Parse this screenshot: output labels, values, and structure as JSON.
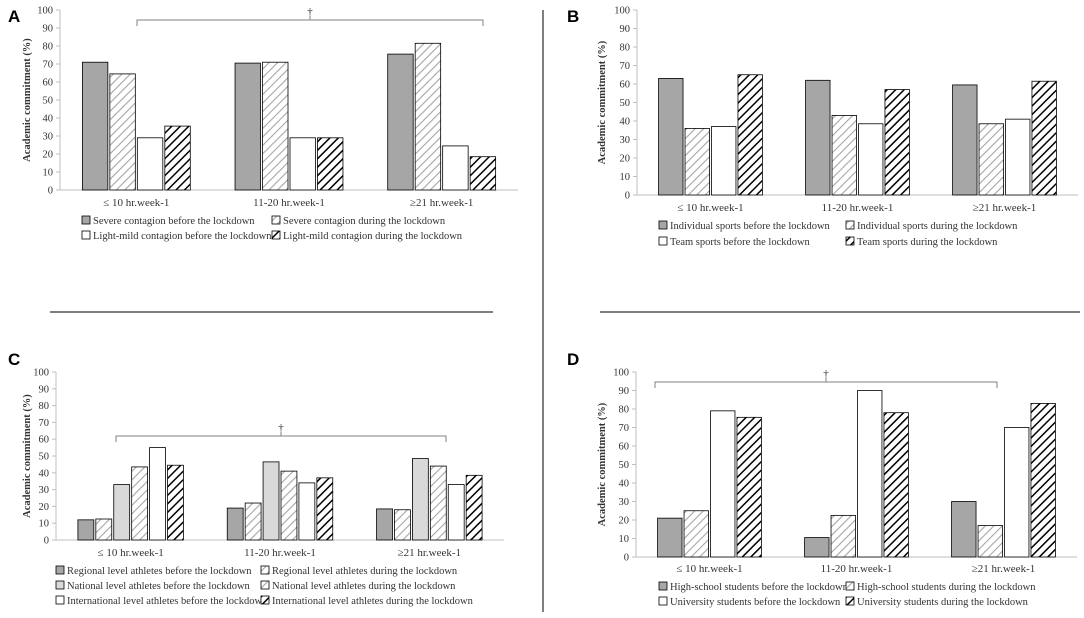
{
  "chart_data": [
    {
      "panel": "A",
      "type": "bar",
      "ylabel": "Academic commitment (%)",
      "ylim": [
        0,
        100
      ],
      "yticks": [
        0,
        10,
        20,
        30,
        40,
        50,
        60,
        70,
        80,
        90,
        100
      ],
      "categories": [
        "≤ 10 hr.week-1",
        "11-20 hr.week-1",
        "≥21 hr.week-1"
      ],
      "significance": "†",
      "series": [
        {
          "name": "Severe contagion before the lockdown",
          "fill": "solid-gray",
          "values": [
            71,
            70.5,
            75.5
          ]
        },
        {
          "name": "Severe contagion during the lockdown",
          "fill": "hatch-light",
          "values": [
            64.5,
            71,
            81.5
          ]
        },
        {
          "name": "Light-mild contagion before the lockdown",
          "fill": "white",
          "values": [
            29,
            29,
            24.5
          ]
        },
        {
          "name": "Light-mild contagion during the lockdown",
          "fill": "hatch-dark",
          "values": [
            35.5,
            29,
            18.5
          ]
        }
      ]
    },
    {
      "panel": "B",
      "type": "bar",
      "ylabel": "Academic commitment (%)",
      "ylim": [
        0,
        100
      ],
      "yticks": [
        0,
        10,
        20,
        30,
        40,
        50,
        60,
        70,
        80,
        90,
        100
      ],
      "categories": [
        "≤ 10 hr.week-1",
        "11-20 hr.week-1",
        "≥21 hr.week-1"
      ],
      "series": [
        {
          "name": "Individual sports before the lockdown",
          "fill": "solid-gray",
          "values": [
            63,
            62,
            59.5
          ]
        },
        {
          "name": "Individual sports during the lockdown",
          "fill": "hatch-light",
          "values": [
            36,
            43,
            38.5
          ]
        },
        {
          "name": "Team sports before the lockdown",
          "fill": "white",
          "values": [
            37,
            38.5,
            41
          ]
        },
        {
          "name": "Team sports during the lockdown",
          "fill": "hatch-dark",
          "values": [
            65,
            57,
            61.5
          ]
        }
      ]
    },
    {
      "panel": "C",
      "type": "bar",
      "ylabel": "Academic commitment (%)",
      "ylim": [
        0,
        100
      ],
      "yticks": [
        0,
        10,
        20,
        30,
        40,
        50,
        60,
        70,
        80,
        90,
        100
      ],
      "categories": [
        "≤ 10 hr.week-1",
        "11-20 hr.week-1",
        "≥21 hr.week-1"
      ],
      "significance": "†",
      "series": [
        {
          "name": "Regional level athletes before the lockdown",
          "fill": "solid-gray",
          "values": [
            12,
            19,
            18.5
          ]
        },
        {
          "name": "Regional level athletes during the lockdown",
          "fill": "hatch-light",
          "values": [
            12.5,
            22,
            18
          ]
        },
        {
          "name": "National level athletes before the lockdown",
          "fill": "solid-light",
          "values": [
            33,
            46.5,
            48.5
          ]
        },
        {
          "name": "National level athletes during the lockdown",
          "fill": "hatch-light",
          "values": [
            43.5,
            41,
            44
          ]
        },
        {
          "name": "International level athletes before the lockdown",
          "fill": "white",
          "values": [
            55,
            34,
            33
          ]
        },
        {
          "name": "International level athletes during the lockdown",
          "fill": "hatch-dark",
          "values": [
            44.5,
            37,
            38.5
          ]
        }
      ]
    },
    {
      "panel": "D",
      "type": "bar",
      "ylabel": "Academic commitment (%)",
      "ylim": [
        0,
        100
      ],
      "yticks": [
        0,
        10,
        20,
        30,
        40,
        50,
        60,
        70,
        80,
        90,
        100
      ],
      "categories": [
        "≤ 10 hr.week-1",
        "11-20 hr.week-1",
        "≥21 hr.week-1"
      ],
      "significance": "†",
      "series": [
        {
          "name": "High-school students before the lockdown",
          "fill": "solid-gray",
          "values": [
            21,
            10.5,
            30
          ]
        },
        {
          "name": "High-school students during the lockdown",
          "fill": "hatch-light",
          "values": [
            25,
            22.5,
            17
          ]
        },
        {
          "name": "University students before the lockdown",
          "fill": "white",
          "values": [
            79,
            90,
            70
          ]
        },
        {
          "name": "University students during the lockdown",
          "fill": "hatch-dark",
          "values": [
            75.5,
            78,
            83
          ]
        }
      ]
    }
  ],
  "colors": {
    "solid_gray": "#a6a6a6",
    "solid_light": "#d9d9d9",
    "hatch_light": "#a6a6a6",
    "hatch_dark": "#000000",
    "axis": "#bfbfbf",
    "divider": "#7f7f7f"
  }
}
